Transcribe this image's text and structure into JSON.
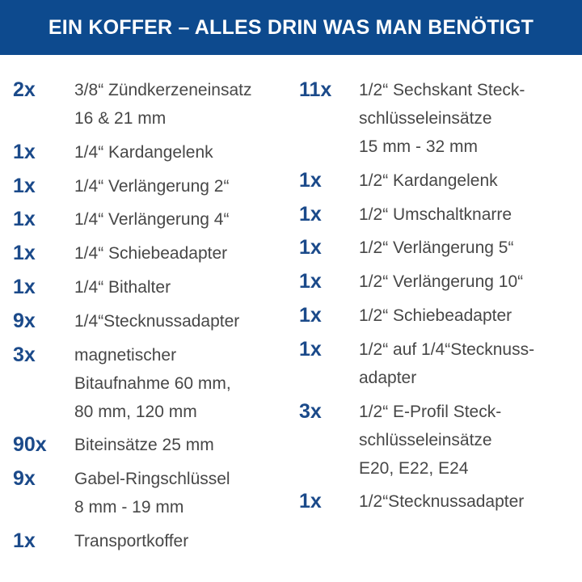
{
  "header": {
    "title": "EIN KOFFER – ALLES DRIN WAS MAN BENÖTIGT"
  },
  "columns": [
    {
      "items": [
        {
          "qty": "2x",
          "lines": [
            "3/8“ Zündkerzeneinsatz",
            "16 & 21 mm"
          ]
        },
        {
          "qty": "1x",
          "lines": [
            "1/4“ Kardangelenk"
          ]
        },
        {
          "qty": "1x",
          "lines": [
            "1/4“ Verlängerung 2“"
          ]
        },
        {
          "qty": "1x",
          "lines": [
            "1/4“ Verlängerung 4“"
          ]
        },
        {
          "qty": "1x",
          "lines": [
            "1/4“ Schiebeadapter"
          ]
        },
        {
          "qty": "1x",
          "lines": [
            "1/4“ Bithalter"
          ]
        },
        {
          "qty": "9x",
          "lines": [
            "1/4“Stecknussadapter"
          ]
        },
        {
          "qty": "3x",
          "lines": [
            "magnetischer",
            "Bitaufnahme 60 mm,",
            "80 mm, 120 mm"
          ]
        },
        {
          "qty": "90x",
          "lines": [
            "Biteinsätze 25 mm"
          ]
        },
        {
          "qty": "9x",
          "lines": [
            "Gabel-Ringschlüssel",
            "8 mm - 19 mm"
          ]
        },
        {
          "qty": "1x",
          "lines": [
            "Transportkoffer"
          ]
        }
      ]
    },
    {
      "items": [
        {
          "qty": "11x",
          "lines": [
            "1/2“ Sechskant Steck-",
            "schlüsseleinsätze",
            "15 mm - 32 mm"
          ]
        },
        {
          "qty": "1x",
          "lines": [
            "1/2“ Kardangelenk"
          ]
        },
        {
          "qty": "1x",
          "lines": [
            "1/2“ Umschaltknarre"
          ]
        },
        {
          "qty": "1x",
          "lines": [
            "1/2“ Verlängerung 5“"
          ]
        },
        {
          "qty": "1x",
          "lines": [
            "1/2“ Verlängerung 10“"
          ]
        },
        {
          "qty": "1x",
          "lines": [
            "1/2“ Schiebeadapter"
          ]
        },
        {
          "qty": "1x",
          "lines": [
            "1/2“ auf 1/4“Stecknuss-",
            "adapter"
          ]
        },
        {
          "qty": "3x",
          "lines": [
            "1/2“ E-Profil Steck-",
            "schlüsseleinsätze",
            "E20, E22, E24"
          ]
        },
        {
          "qty": "1x",
          "lines": [
            "1/2“Stecknussadapter"
          ]
        }
      ]
    }
  ]
}
